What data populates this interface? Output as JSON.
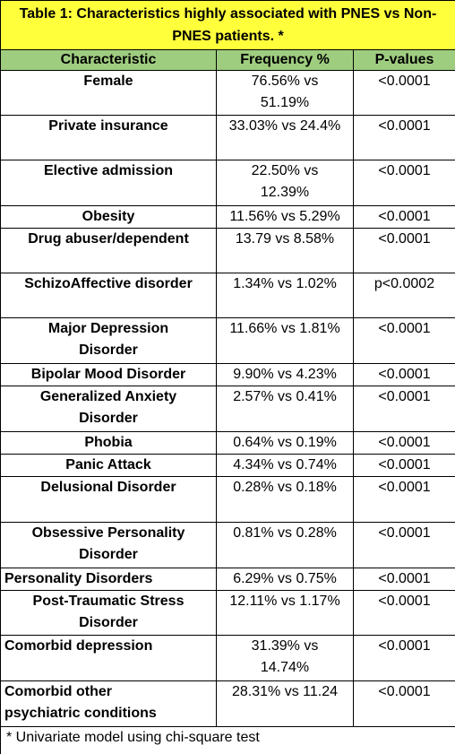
{
  "title": "Table 1: Characteristics highly associated with PNES vs Non-PNES patients. *",
  "header": [
    "Characteristic",
    "Frequency %",
    "P-values"
  ],
  "rows": [
    [
      "Female",
      "76.56% vs 51.19%",
      "<0.0001"
    ],
    [
      "Private insurance",
      "33.03% vs 24.4%",
      "<0.0001"
    ],
    [
      "Elective admission",
      "22.50% vs 12.39%",
      "<0.0001"
    ],
    [
      "Obesity",
      "11.56% vs 5.29%",
      "<0.0001"
    ],
    [
      "Drug abuser/dependent",
      "13.79 vs 8.58%",
      "<0.0001"
    ],
    [
      "SchizoAffective disorder",
      "1.34% vs 1.02%",
      "p<0.0002"
    ],
    [
      "Major Depression Disorder",
      "11.66% vs 1.81%",
      "<0.0001"
    ],
    [
      "Bipolar Mood Disorder",
      "9.90% vs 4.23%",
      "<0.0001"
    ],
    [
      "Generalized Anxiety Disorder",
      "2.57% vs 0.41%",
      "<0.0001"
    ],
    [
      "Phobia",
      "0.64% vs 0.19%",
      "<0.0001"
    ],
    [
      "Panic Attack",
      "4.34% vs 0.74%",
      "<0.0001"
    ],
    [
      "Delusional Disorder",
      "0.28% vs 0.18%",
      "<0.0001"
    ],
    [
      "Obsessive Personality Disorder",
      "0.81% vs 0.28%",
      "<0.0001"
    ],
    [
      "Personality Disorders",
      "6.29% vs 0.75%",
      "<0.0001"
    ],
    [
      "Post-Traumatic Stress Disorder",
      "12.11% vs 1.17%",
      "<0.0001"
    ],
    [
      "Comorbid depression",
      "31.39% vs 14.74%",
      "<0.0001"
    ],
    [
      "Comorbid other psychiatric conditions",
      "28.31% vs 11.24",
      "<0.0001"
    ]
  ],
  "footnote": "* Univariate model using chi-square test"
}
